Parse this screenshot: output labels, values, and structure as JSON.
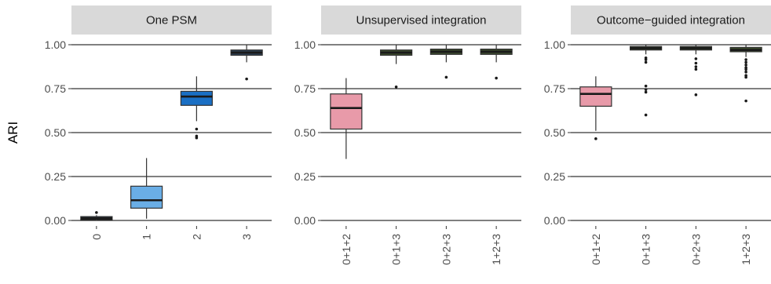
{
  "chart_data": {
    "type": "box",
    "ylabel": "ARI",
    "ylim": [
      0,
      1
    ],
    "yticks": [
      "0.00",
      "0.25",
      "0.50",
      "0.75",
      "1.00"
    ],
    "grid": "horizontal major lines",
    "colors": {
      "strip_bg": "#d9d9d9",
      "box_outline": "#333333",
      "grid_line": "#000000",
      "tick_text": "#4d4d4d"
    },
    "panels": [
      {
        "title": "One PSM",
        "categories": [
          "0",
          "1",
          "2",
          "3"
        ],
        "boxes": [
          {
            "q1": 0.005,
            "median": 0.012,
            "q3": 0.022,
            "lower": 0.0,
            "upper": 0.03,
            "outliers": [
              0.045
            ],
            "fill": "#2b3a4e"
          },
          {
            "q1": 0.07,
            "median": 0.115,
            "q3": 0.195,
            "lower": 0.01,
            "upper": 0.355,
            "outliers": [],
            "fill": "#6aaee6"
          },
          {
            "q1": 0.655,
            "median": 0.705,
            "q3": 0.735,
            "lower": 0.565,
            "upper": 0.82,
            "outliers": [
              0.52,
              0.48,
              0.47
            ],
            "fill": "#1a6fc4"
          },
          {
            "q1": 0.94,
            "median": 0.955,
            "q3": 0.97,
            "lower": 0.9,
            "upper": 1.0,
            "outliers": [
              0.805
            ],
            "fill": "#2d3f52"
          }
        ]
      },
      {
        "title": "Unsupervised integration",
        "categories": [
          "0+1+2",
          "0+1+3",
          "0+2+3",
          "1+2+3"
        ],
        "boxes": [
          {
            "q1": 0.52,
            "median": 0.64,
            "q3": 0.72,
            "lower": 0.35,
            "upper": 0.81,
            "outliers": [],
            "fill": "#e89aa9"
          },
          {
            "q1": 0.94,
            "median": 0.955,
            "q3": 0.97,
            "lower": 0.89,
            "upper": 1.0,
            "outliers": [
              0.76
            ],
            "fill": "#3b4a2c"
          },
          {
            "q1": 0.945,
            "median": 0.96,
            "q3": 0.975,
            "lower": 0.9,
            "upper": 1.0,
            "outliers": [
              0.815
            ],
            "fill": "#3b4a2c"
          },
          {
            "q1": 0.945,
            "median": 0.96,
            "q3": 0.975,
            "lower": 0.9,
            "upper": 1.0,
            "outliers": [
              0.81
            ],
            "fill": "#3b4a2c"
          }
        ]
      },
      {
        "title": "Outcome−guided integration",
        "categories": [
          "0+1+2",
          "0+1+3",
          "0+2+3",
          "1+2+3"
        ],
        "boxes": [
          {
            "q1": 0.65,
            "median": 0.72,
            "q3": 0.76,
            "lower": 0.51,
            "upper": 0.82,
            "outliers": [
              0.465
            ],
            "fill": "#e89aa9"
          },
          {
            "q1": 0.97,
            "median": 0.98,
            "q3": 0.99,
            "lower": 0.945,
            "upper": 1.0,
            "outliers": [
              0.925,
              0.915,
              0.9,
              0.765,
              0.745,
              0.73,
              0.6
            ],
            "fill": "#3b4a2c"
          },
          {
            "q1": 0.97,
            "median": 0.98,
            "q3": 0.99,
            "lower": 0.945,
            "upper": 1.0,
            "outliers": [
              0.92,
              0.895,
              0.875,
              0.86,
              0.715
            ],
            "fill": "#3b4a2c"
          },
          {
            "q1": 0.96,
            "median": 0.97,
            "q3": 0.985,
            "lower": 0.93,
            "upper": 1.0,
            "outliers": [
              0.915,
              0.9,
              0.885,
              0.87,
              0.86,
              0.845,
              0.825,
              0.815,
              0.68
            ],
            "fill": "#3b4a2c"
          }
        ]
      }
    ]
  }
}
